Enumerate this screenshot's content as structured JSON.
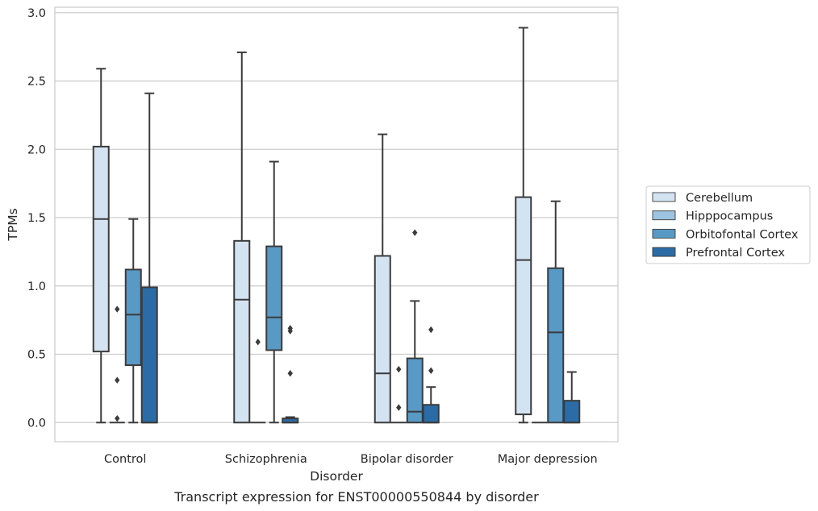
{
  "chart_data": {
    "type": "box",
    "caption": "Transcript expression for ENST00000550844 by disorder",
    "xlabel": "Disorder",
    "ylabel": "TPMs",
    "ylim": [
      -0.14,
      3.04
    ],
    "yticks": [
      0.0,
      0.5,
      1.0,
      1.5,
      2.0,
      2.5,
      3.0
    ],
    "ytick_labels": [
      "0.0",
      "0.5",
      "1.0",
      "1.5",
      "2.0",
      "2.5",
      "3.0"
    ],
    "grid": "horizontal",
    "legend_position": "right-outside",
    "categories": [
      "Control",
      "Schizophrenia",
      "Bipolar disorder",
      "Major depression"
    ],
    "series": [
      {
        "name": "Cerebellum",
        "color": "#d4e3f2",
        "boxes": [
          {
            "q1": 0.52,
            "median": 1.49,
            "q3": 2.02,
            "whisker_low": 0.0,
            "whisker_high": 2.59,
            "outliers": []
          },
          {
            "q1": 0.0,
            "median": 0.9,
            "q3": 1.33,
            "whisker_low": 0.0,
            "whisker_high": 2.71,
            "outliers": []
          },
          {
            "q1": 0.0,
            "median": 0.36,
            "q3": 1.22,
            "whisker_low": 0.0,
            "whisker_high": 2.11,
            "outliers": []
          },
          {
            "q1": 0.06,
            "median": 1.19,
            "q3": 1.65,
            "whisker_low": 0.0,
            "whisker_high": 2.89,
            "outliers": []
          }
        ]
      },
      {
        "name": "Hipppocampus",
        "color": "#9cc4e0",
        "boxes": [
          {
            "q1": 0.0,
            "median": 0.0,
            "q3": 0.0,
            "whisker_low": 0.0,
            "whisker_high": 0.0,
            "outliers": [
              0.83,
              0.31,
              0.03
            ]
          },
          {
            "q1": 0.0,
            "median": 0.0,
            "q3": 0.0,
            "whisker_low": 0.0,
            "whisker_high": 0.0,
            "outliers": [
              0.59
            ]
          },
          {
            "q1": 0.0,
            "median": 0.0,
            "q3": 0.0,
            "whisker_low": 0.0,
            "whisker_high": 0.0,
            "outliers": [
              0.39,
              0.11
            ]
          },
          {
            "q1": 0.0,
            "median": 0.0,
            "q3": 0.0,
            "whisker_low": 0.0,
            "whisker_high": 0.0,
            "outliers": []
          }
        ]
      },
      {
        "name": "Orbitofontal Cortex",
        "color": "#5899c6",
        "boxes": [
          {
            "q1": 0.42,
            "median": 0.79,
            "q3": 1.12,
            "whisker_low": 0.0,
            "whisker_high": 1.49,
            "outliers": []
          },
          {
            "q1": 0.53,
            "median": 0.77,
            "q3": 1.29,
            "whisker_low": 0.0,
            "whisker_high": 1.91,
            "outliers": []
          },
          {
            "q1": 0.0,
            "median": 0.08,
            "q3": 0.47,
            "whisker_low": 0.0,
            "whisker_high": 0.89,
            "outliers": [
              1.39
            ]
          },
          {
            "q1": 0.0,
            "median": 0.66,
            "q3": 1.13,
            "whisker_low": 0.0,
            "whisker_high": 1.62,
            "outliers": []
          }
        ]
      },
      {
        "name": "Prefrontal Cortex",
        "color": "#2b6ca6",
        "boxes": [
          {
            "q1": 0.0,
            "median": 0.0,
            "q3": 0.99,
            "whisker_low": 0.0,
            "whisker_high": 2.41,
            "outliers": []
          },
          {
            "q1": 0.0,
            "median": 0.0,
            "q3": 0.03,
            "whisker_low": 0.0,
            "whisker_high": 0.04,
            "outliers": [
              0.69,
              0.67,
              0.36
            ]
          },
          {
            "q1": 0.0,
            "median": 0.0,
            "q3": 0.13,
            "whisker_low": 0.0,
            "whisker_high": 0.26,
            "outliers": [
              0.68,
              0.38
            ]
          },
          {
            "q1": 0.0,
            "median": 0.0,
            "q3": 0.16,
            "whisker_low": 0.0,
            "whisker_high": 0.37,
            "outliers": []
          }
        ]
      }
    ]
  }
}
